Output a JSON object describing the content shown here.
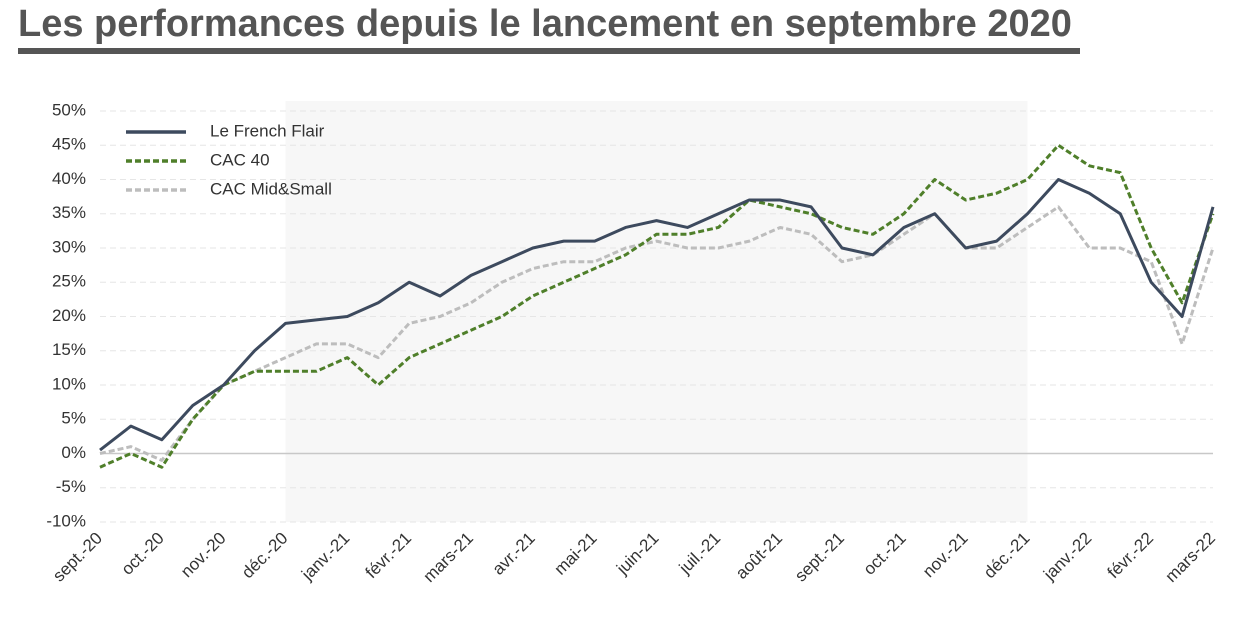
{
  "chart_data": {
    "type": "line",
    "title": "Les performances depuis le lancement en septembre 2020",
    "categories": [
      "sept.-20",
      null,
      "oct.-20",
      null,
      "nov.-20",
      null,
      "déc.-20",
      null,
      "janv.-21",
      null,
      "févr.-21",
      null,
      "mars-21",
      null,
      "avr.-21",
      null,
      "mai-21",
      null,
      "juin-21",
      null,
      "juil.-21",
      null,
      "août-21",
      null,
      "sept.-21",
      null,
      "oct.-21",
      null,
      "nov.-21",
      null,
      "déc.-21",
      null,
      "janv.-22",
      null,
      "févr.-22",
      null,
      "mars-22"
    ],
    "series": [
      {
        "name": "Le French Flair",
        "color": "#3d4a5e",
        "dash": "solid",
        "values": [
          0.5,
          4,
          2,
          7,
          10,
          15,
          19,
          19.5,
          20,
          22,
          25,
          23,
          26,
          28,
          30,
          31,
          31,
          33,
          34,
          33,
          35,
          37,
          37,
          36,
          30,
          29,
          33,
          35,
          30,
          31,
          35,
          40,
          38,
          35,
          25,
          20,
          36
        ]
      },
      {
        "name": "CAC 40",
        "color": "#4f7f2a",
        "dash": "dashed",
        "values": [
          -2,
          0,
          -2,
          5,
          10,
          12,
          12,
          12,
          14,
          10,
          14,
          16,
          18,
          20,
          23,
          25,
          27,
          29,
          32,
          32,
          33,
          37,
          36,
          35,
          33,
          32,
          35,
          40,
          37,
          38,
          40,
          45,
          42,
          41,
          30,
          22,
          35
        ]
      },
      {
        "name": "CAC Mid&Small",
        "color": "#bdbdbd",
        "dash": "dashed",
        "values": [
          0,
          1,
          -1,
          5,
          10,
          12,
          14,
          16,
          16,
          14,
          19,
          20,
          22,
          25,
          27,
          28,
          28,
          30,
          31,
          30,
          30,
          31,
          33,
          32,
          28,
          29,
          32,
          35,
          30,
          30,
          33,
          36,
          30,
          30,
          28,
          16,
          30
        ]
      }
    ],
    "ylim": [
      -10,
      50
    ],
    "yticks": [
      {
        "value": -10,
        "label": "-10%"
      },
      {
        "value": -5,
        "label": "-5%"
      },
      {
        "value": 0,
        "label": "0%"
      },
      {
        "value": 5,
        "label": "5%"
      },
      {
        "value": 10,
        "label": "10%"
      },
      {
        "value": 15,
        "label": "15%"
      },
      {
        "value": 20,
        "label": "20%"
      },
      {
        "value": 25,
        "label": "25%"
      },
      {
        "value": 30,
        "label": "30%"
      },
      {
        "value": 35,
        "label": "35%"
      },
      {
        "value": 40,
        "label": "40%"
      },
      {
        "value": 45,
        "label": "45%"
      },
      {
        "value": 50,
        "label": "50%"
      }
    ],
    "grid": true,
    "legend": "top-left"
  }
}
